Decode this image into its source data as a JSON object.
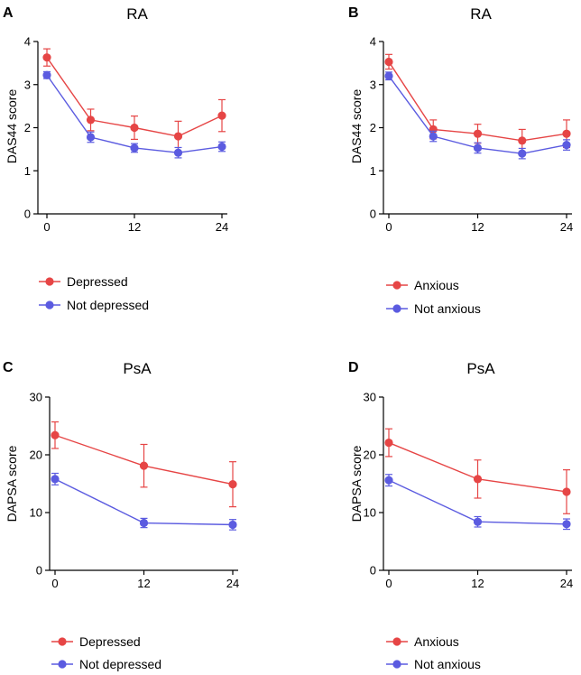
{
  "colors": {
    "red": "#e64545",
    "blue": "#5b5be0",
    "axis": "#000000"
  },
  "chart_data": [
    {
      "panel": "A",
      "title": "RA",
      "type": "line",
      "xlabel": "",
      "ylabel": "DAS44 score",
      "x": [
        0,
        6,
        12,
        18,
        24
      ],
      "xticks": [
        0,
        12,
        24
      ],
      "xlim": [
        0,
        24
      ],
      "yticks": [
        0,
        1,
        2,
        3,
        4
      ],
      "ylim": [
        0,
        4
      ],
      "series": [
        {
          "name": "Depressed",
          "color": "red",
          "values": [
            3.63,
            2.18,
            2.0,
            1.8,
            2.28
          ],
          "err": [
            0.2,
            0.25,
            0.27,
            0.35,
            0.37
          ]
        },
        {
          "name": "Not depressed",
          "color": "blue",
          "values": [
            3.22,
            1.78,
            1.53,
            1.42,
            1.56
          ],
          "err": [
            0.08,
            0.12,
            0.1,
            0.12,
            0.11
          ]
        }
      ]
    },
    {
      "panel": "B",
      "title": "RA",
      "type": "line",
      "xlabel": "",
      "ylabel": "DAS44 score",
      "x": [
        0,
        6,
        12,
        18,
        24
      ],
      "xticks": [
        0,
        12,
        24
      ],
      "xlim": [
        0,
        24
      ],
      "yticks": [
        0,
        1,
        2,
        3,
        4
      ],
      "ylim": [
        0,
        4
      ],
      "series": [
        {
          "name": "Anxious",
          "color": "red",
          "values": [
            3.53,
            1.96,
            1.86,
            1.7,
            1.86
          ],
          "err": [
            0.17,
            0.22,
            0.22,
            0.26,
            0.32
          ]
        },
        {
          "name": "Not anxious",
          "color": "blue",
          "values": [
            3.2,
            1.8,
            1.53,
            1.4,
            1.6
          ],
          "err": [
            0.09,
            0.12,
            0.12,
            0.12,
            0.12
          ]
        }
      ]
    },
    {
      "panel": "C",
      "title": "PsA",
      "type": "line",
      "xlabel": "",
      "ylabel": "DAPSA score",
      "x": [
        0,
        12,
        24
      ],
      "xticks": [
        0,
        12,
        24
      ],
      "xlim": [
        0,
        24
      ],
      "yticks": [
        0,
        10,
        20,
        30
      ],
      "ylim": [
        0,
        30
      ],
      "series": [
        {
          "name": "Depressed",
          "color": "red",
          "values": [
            23.4,
            18.1,
            14.9
          ],
          "err": [
            2.3,
            3.7,
            3.9
          ]
        },
        {
          "name": "Not depressed",
          "color": "blue",
          "values": [
            15.8,
            8.2,
            7.9
          ],
          "err": [
            1.0,
            0.8,
            0.9
          ]
        }
      ]
    },
    {
      "panel": "D",
      "title": "PsA",
      "type": "line",
      "xlabel": "",
      "ylabel": "DAPSA score",
      "x": [
        0,
        12,
        24
      ],
      "xticks": [
        0,
        12,
        24
      ],
      "xlim": [
        0,
        24
      ],
      "yticks": [
        0,
        10,
        20,
        30
      ],
      "ylim": [
        0,
        30
      ],
      "series": [
        {
          "name": "Anxious",
          "color": "red",
          "values": [
            22.1,
            15.8,
            13.6
          ],
          "err": [
            2.4,
            3.3,
            3.8
          ]
        },
        {
          "name": "Not anxious",
          "color": "blue",
          "values": [
            15.6,
            8.4,
            8.0
          ],
          "err": [
            1.0,
            0.9,
            0.9
          ]
        }
      ]
    }
  ]
}
